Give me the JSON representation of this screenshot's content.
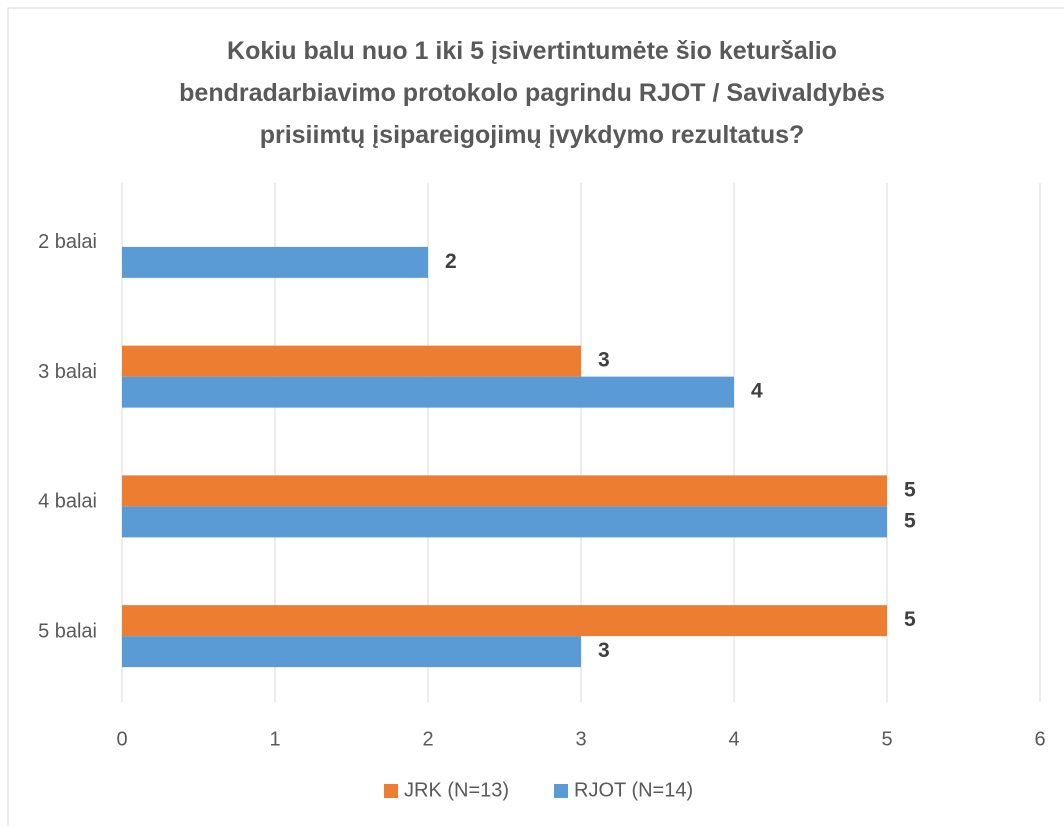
{
  "chart_data": {
    "type": "hbar",
    "title": "Kokiu balu nuo 1 iki 5 įsivertintumėte šio keturšalio bendradarbiavimo protokolo pagrindu RJOT / Savivaldybės prisiimtų įsipareigojimų įvykdymo rezultatus?",
    "categories": [
      "2 balai",
      "3 balai",
      "4 balai",
      "5 balai"
    ],
    "series": [
      {
        "name": "JRK (N=13)",
        "color": "#ed7d31",
        "values": [
          null,
          3,
          5,
          5
        ]
      },
      {
        "name": "RJOT (N=14)",
        "color": "#5b9bd5",
        "values": [
          2,
          4,
          5,
          3
        ]
      }
    ],
    "xlim": [
      0,
      6
    ],
    "xticks": [
      0,
      1,
      2,
      3,
      4,
      5,
      6
    ],
    "grid": true,
    "legend": "bottom"
  }
}
